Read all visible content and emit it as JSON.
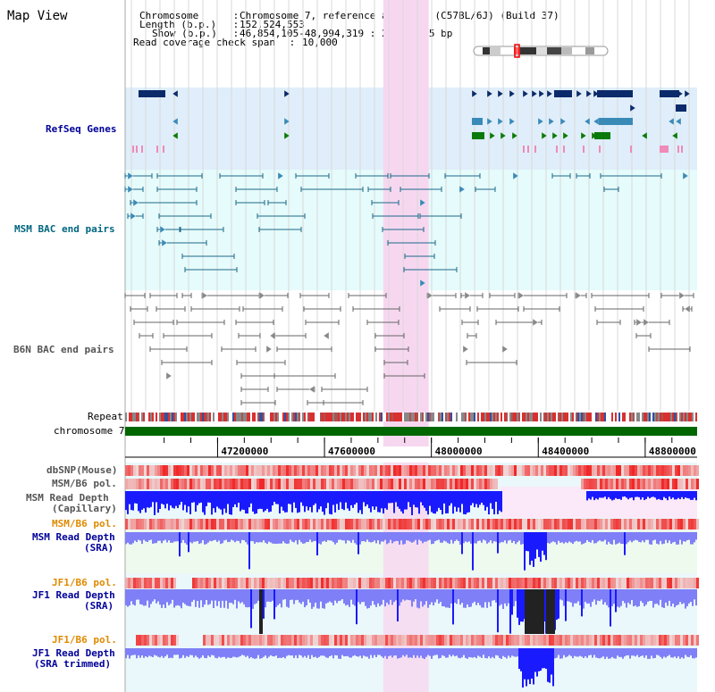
{
  "window": {
    "title": "Map View"
  },
  "header": {
    "lines": [
      {
        "label": "Chromosome",
        "sep": " : ",
        "value": "Chromosome 7, reference assembly (C57BL/6J) (Build 37)"
      },
      {
        "label": "Length (b.p.)",
        "sep": " : ",
        "value": "152,524,553"
      },
      {
        "label": "Show (b.p.)",
        "sep": " : ",
        "value": "46,854,105-48,994,319 : 2,140,215 bp"
      },
      {
        "label": "Read coverage check span",
        "sep": " : ",
        "value": "10,000"
      }
    ]
  },
  "tracks": {
    "refseq": {
      "label": "RefSeq Genes",
      "color": "#000099"
    },
    "msm_bac": {
      "label": "MSM BAC end pairs",
      "color": "#006680"
    },
    "b6n_bac": {
      "label": "B6N BAC end pairs",
      "color": "#555555"
    },
    "repeat": {
      "label": "Repeat"
    },
    "chromosome": {
      "label": "chromosome 7"
    },
    "dbsnp": {
      "label": "dbSNP(Mouse)"
    },
    "msm_b6_pol_1": {
      "label": "MSM/B6 pol."
    },
    "msm_read_cap": {
      "label1": "MSM Read Depth",
      "label2": "(Capillary)"
    },
    "msm_b6_pol_2": {
      "label": "MSM/B6 pol.",
      "color": "#e08a00"
    },
    "msm_read_sra": {
      "label1": "MSM Read Depth",
      "label2": "(SRA)"
    },
    "jf1_b6_pol_1": {
      "label": "JF1/B6 pol.",
      "color": "#e08a00"
    },
    "jf1_read_sra": {
      "label1": "JF1 Read Depth",
      "label2": "(SRA)"
    },
    "jf1_b6_pol_2": {
      "label": "JF1/B6 pol.",
      "color": "#e08a00"
    },
    "jf1_read_trim": {
      "label1": "JF1 Read Depth",
      "label2": "(SRA trimmed)"
    }
  },
  "axis": {
    "ticks": [
      {
        "pos": 47200000,
        "label": "47200000"
      },
      {
        "pos": 47600000,
        "label": "47600000"
      },
      {
        "pos": 48000000,
        "label": "48000000"
      },
      {
        "pos": 48400000,
        "label": "48400000"
      },
      {
        "pos": 48800000,
        "label": "48800000"
      }
    ],
    "range": [
      46854105,
      48994319
    ],
    "highlight": [
      47820000,
      47990000
    ]
  },
  "colors": {
    "refseq_bg": "#dfeefa",
    "bac_bg": "#e6fbfb",
    "highlight": "#f7d7f0",
    "depth_blue": "#1a1aff",
    "depth_light": "#7f7ff7",
    "snp_red": "#f03030",
    "chrom_green": "#006600"
  }
}
